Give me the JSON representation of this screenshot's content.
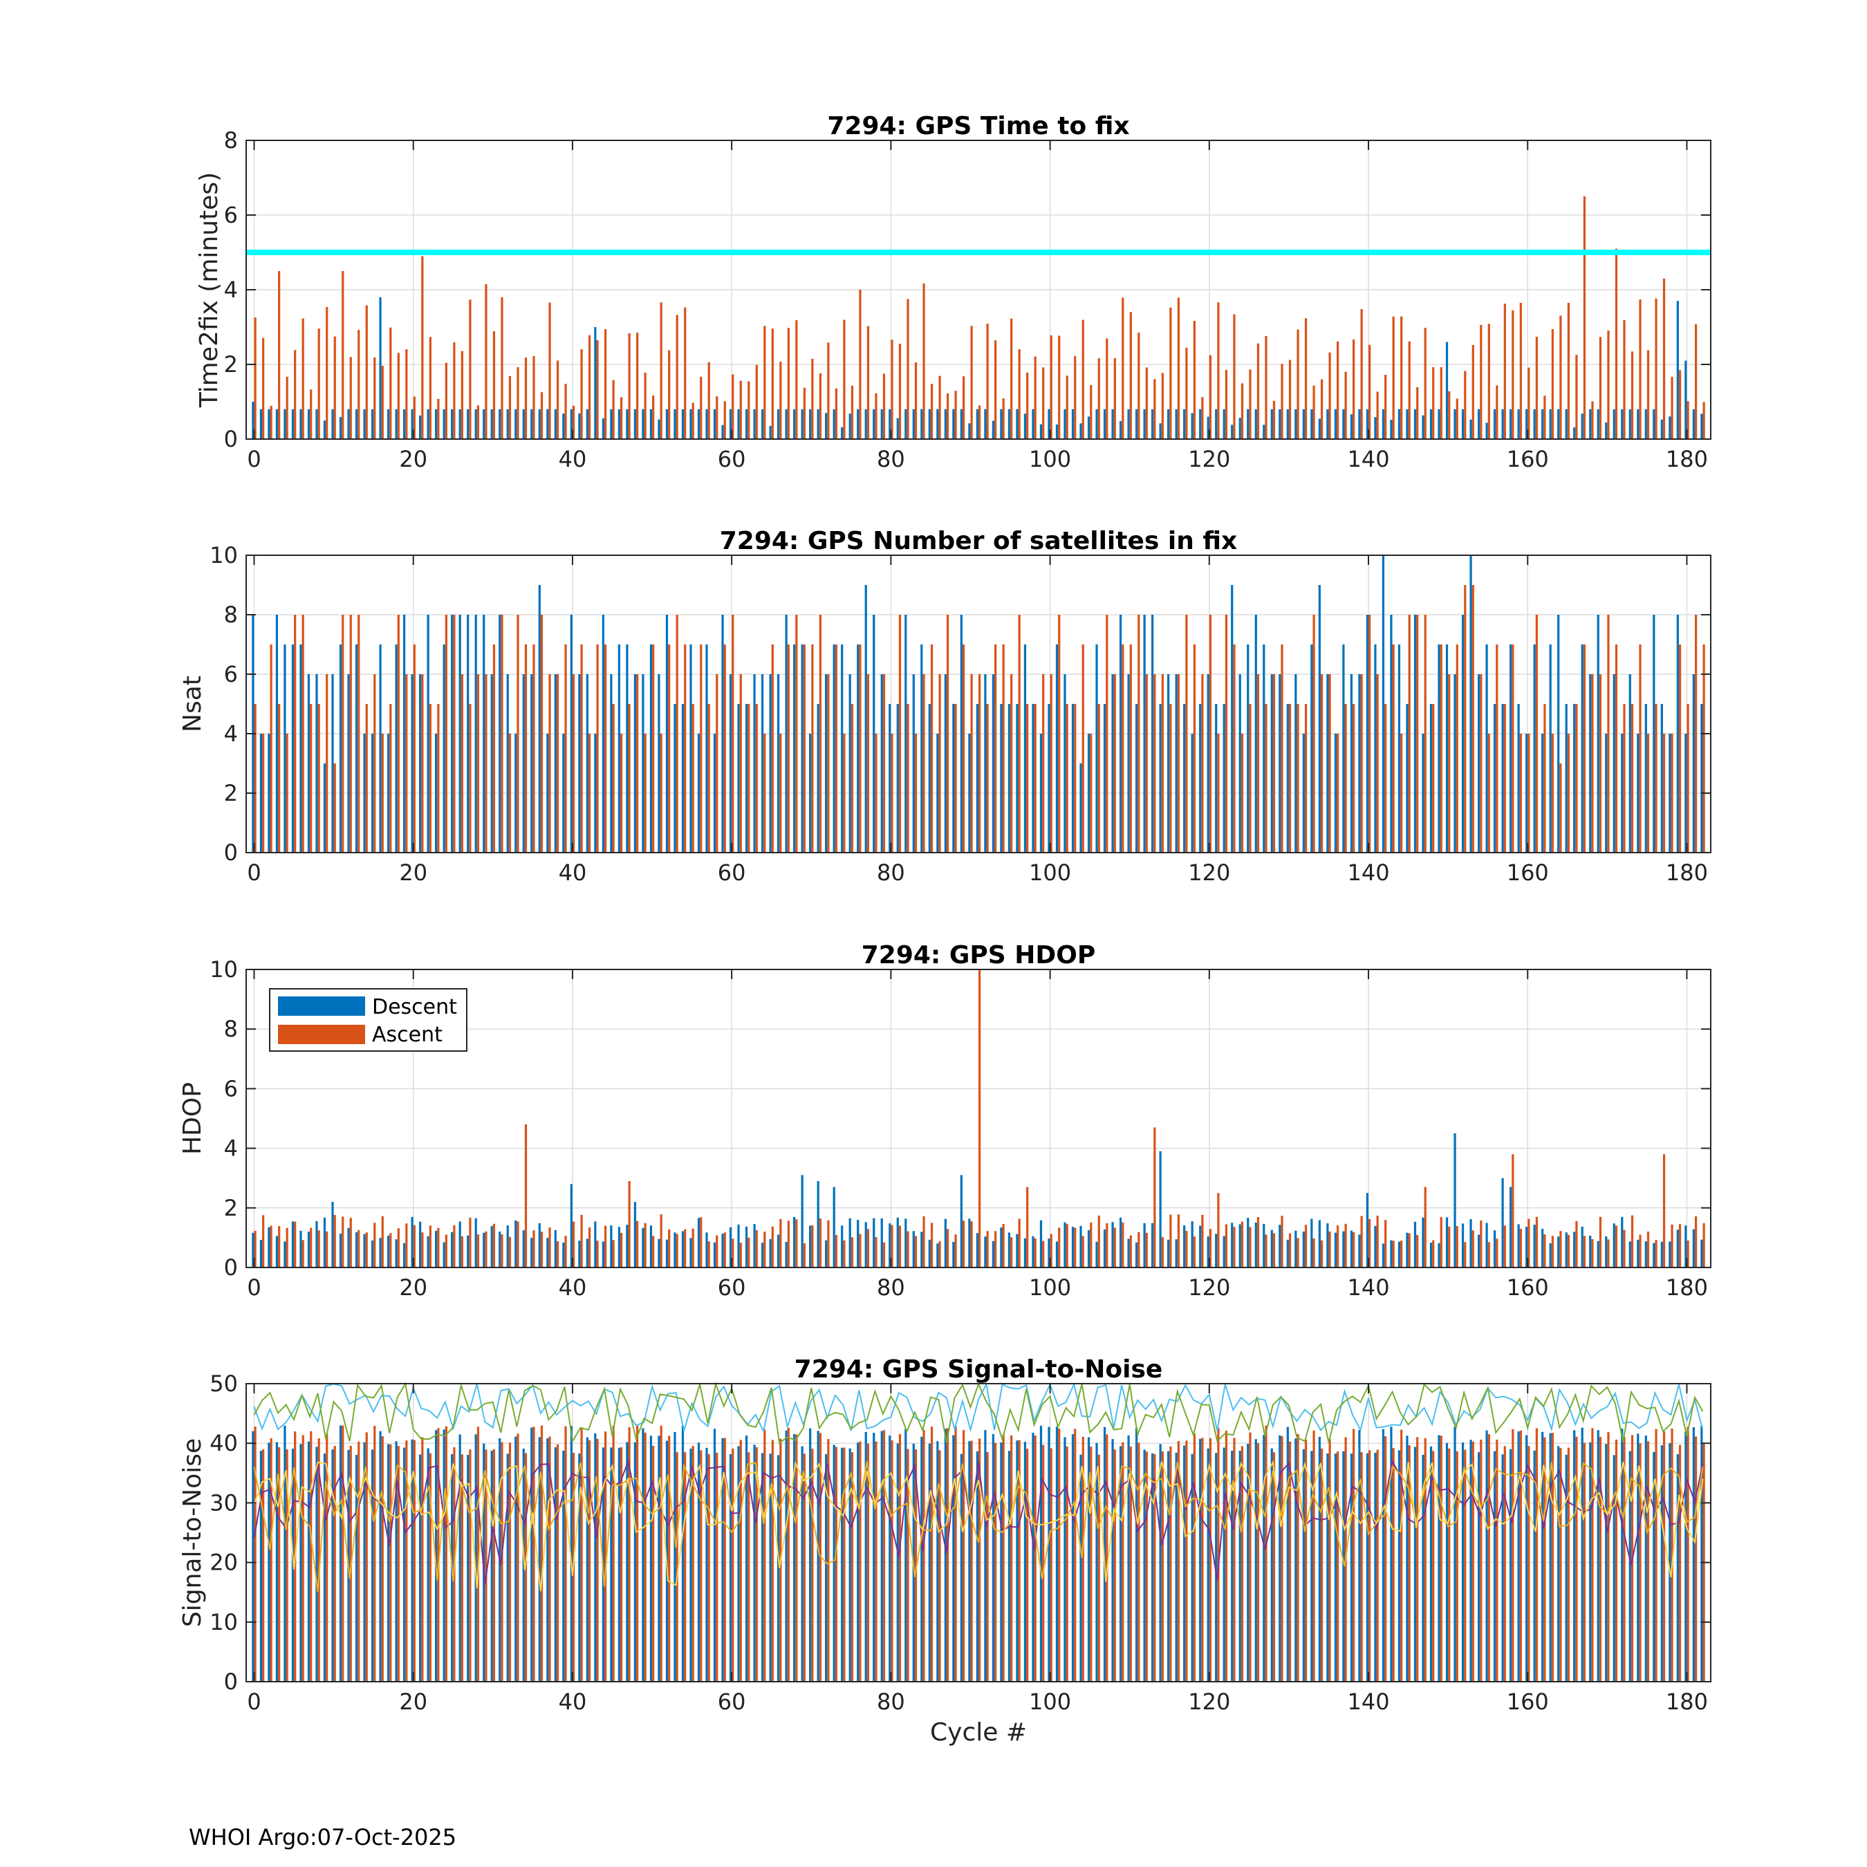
{
  "footer": "WHOI Argo:07-Oct-2025",
  "colors": {
    "descent": "#0072BD",
    "ascent": "#D95319",
    "threshold": "#00FFFF",
    "snr_lines": [
      "#4DBEEE",
      "#77AC30",
      "#7E2F8E",
      "#EDB120",
      "#FFD54A"
    ]
  },
  "chart_data": [
    {
      "type": "bar",
      "title": "7294: GPS Time to fix",
      "xlabel": "",
      "ylabel": "Time2fix (minutes)",
      "xlim": [
        -1,
        183
      ],
      "ylim": [
        0,
        8
      ],
      "xticks": [
        0,
        20,
        40,
        60,
        80,
        100,
        120,
        140,
        160,
        180
      ],
      "yticks": [
        0,
        2,
        4,
        6,
        8
      ],
      "grid": true,
      "reference_line": {
        "y": 5
      },
      "series": [
        {
          "name": "Descent",
          "description": "mostly ~0.3–0.8 min per cycle; peaks 3.8 at cycle 16, 3.0 at 43, 2.6 at 150, 3.7 at 179"
        },
        {
          "name": "Ascent",
          "description": "0.5–4.5 min per cycle; peaks 4.9 at cycle 21, 4.2 at 84, 6.5 at 167, 5.1 at 171, 4.3 at 177"
        }
      ]
    },
    {
      "type": "bar",
      "title": "7294: GPS Number of satellites in fix",
      "xlabel": "",
      "ylabel": "Nsat",
      "xlim": [
        -1,
        183
      ],
      "ylim": [
        0,
        10
      ],
      "xticks": [
        0,
        20,
        40,
        60,
        80,
        100,
        120,
        140,
        160,
        180
      ],
      "yticks": [
        0,
        2,
        4,
        6,
        8,
        10
      ],
      "grid": true,
      "series": [
        {
          "name": "Descent",
          "description": "4–8 satellites typical; 9 at cycles 36, 77, 123, 134; 10 at 142 and 153; 3 at 9"
        },
        {
          "name": "Ascent",
          "description": "4–8 satellites typical; 9 at 152 and 153; 3 at 10"
        }
      ]
    },
    {
      "type": "bar",
      "title": "7294: GPS HDOP",
      "xlabel": "",
      "ylabel": "HDOP",
      "xlim": [
        -1,
        183
      ],
      "ylim": [
        0,
        10
      ],
      "xticks": [
        0,
        20,
        40,
        60,
        80,
        100,
        120,
        140,
        160,
        180
      ],
      "yticks": [
        0,
        2,
        4,
        6,
        8,
        10
      ],
      "grid": true,
      "legend": {
        "position": "top-left",
        "entries": [
          "Descent",
          "Ascent"
        ]
      },
      "series": [
        {
          "name": "Descent",
          "description": "mostly 0.8–1.6; peaks 2.8 at 40, 3.1 at 69, 3.9 at 114, 2.5 at 140, 4.5 at 151, 3.0 at 157"
        },
        {
          "name": "Ascent",
          "description": "mostly 0.8–1.6; peaks 4.8 at 34, 10 at 91, 4.7 at 113, 3.8 at 158, 3.8 at 177"
        }
      ]
    },
    {
      "type": "bar+line",
      "title": "7294: GPS Signal-to-Noise",
      "xlabel": "Cycle #",
      "ylabel": "Signal-to-Noise",
      "xlim": [
        -1,
        183
      ],
      "ylim": [
        0,
        50
      ],
      "xticks": [
        0,
        20,
        40,
        60,
        80,
        100,
        120,
        140,
        160,
        180
      ],
      "yticks": [
        0,
        10,
        20,
        30,
        40,
        50
      ],
      "grid": true,
      "series": [
        {
          "name": "Descent",
          "description": "bars ~38–43 every cycle"
        },
        {
          "name": "Ascent",
          "description": "bars ~38–43 every cycle"
        },
        {
          "name": "",
          "description": "line ~42–50"
        },
        {
          "name": "",
          "description": "line ~40–50"
        },
        {
          "name": "",
          "description": "line ~17–45, mostly 28–38"
        },
        {
          "name": "",
          "description": "line ~17–45, mostly 25–38"
        },
        {
          "name": "",
          "description": "line ~17–40"
        }
      ]
    }
  ]
}
